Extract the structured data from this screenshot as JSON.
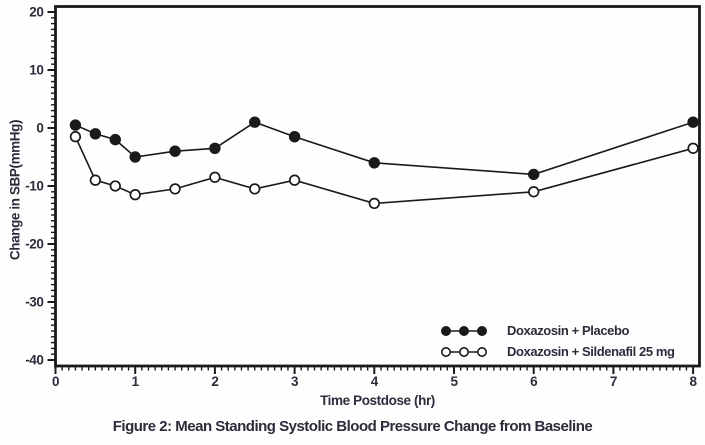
{
  "figure": {
    "caption": "Figure 2: Mean Standing Systolic Blood Pressure Change from Baseline",
    "colors": {
      "line": "#1a1a1a",
      "marker_fill": "#1a1a1a",
      "marker_open_fill": "#ffffff",
      "text": "#2c2c3a",
      "background": "#fefefe"
    }
  },
  "chart_data": {
    "type": "line",
    "title": "Figure 2: Mean Standing Systolic Blood Pressure Change from Baseline",
    "xlabel": "Time Postdose (hr)",
    "ylabel": "Change in SBP(mmHg)",
    "x": [
      0.25,
      0.5,
      0.75,
      1,
      1.5,
      2,
      2.5,
      3,
      4,
      6,
      8
    ],
    "series": [
      {
        "name": "Doxazosin + Placebo",
        "marker": "filled-circle",
        "values": [
          0.5,
          -1,
          -2,
          -5,
          -4,
          -3.5,
          1,
          -1.5,
          -6,
          -8,
          1
        ]
      },
      {
        "name": "Doxazosin + Sildenafil 25 mg",
        "marker": "open-circle",
        "values": [
          -1.5,
          -9,
          -10,
          -11.5,
          -10.5,
          -8.5,
          -10.5,
          -9,
          -13,
          -11,
          -3.5
        ]
      }
    ],
    "xlim": [
      0,
      8
    ],
    "ylim": [
      -40,
      20
    ],
    "x_major_ticks": [
      0,
      1,
      2,
      3,
      4,
      5,
      6,
      7,
      8
    ],
    "x_minor_divisions": 12,
    "y_major_ticks": [
      -40,
      -30,
      -20,
      -10,
      0,
      10,
      20
    ],
    "y_minor_divisions": 10,
    "grid": false,
    "legend_position": "inside-bottom-right"
  }
}
